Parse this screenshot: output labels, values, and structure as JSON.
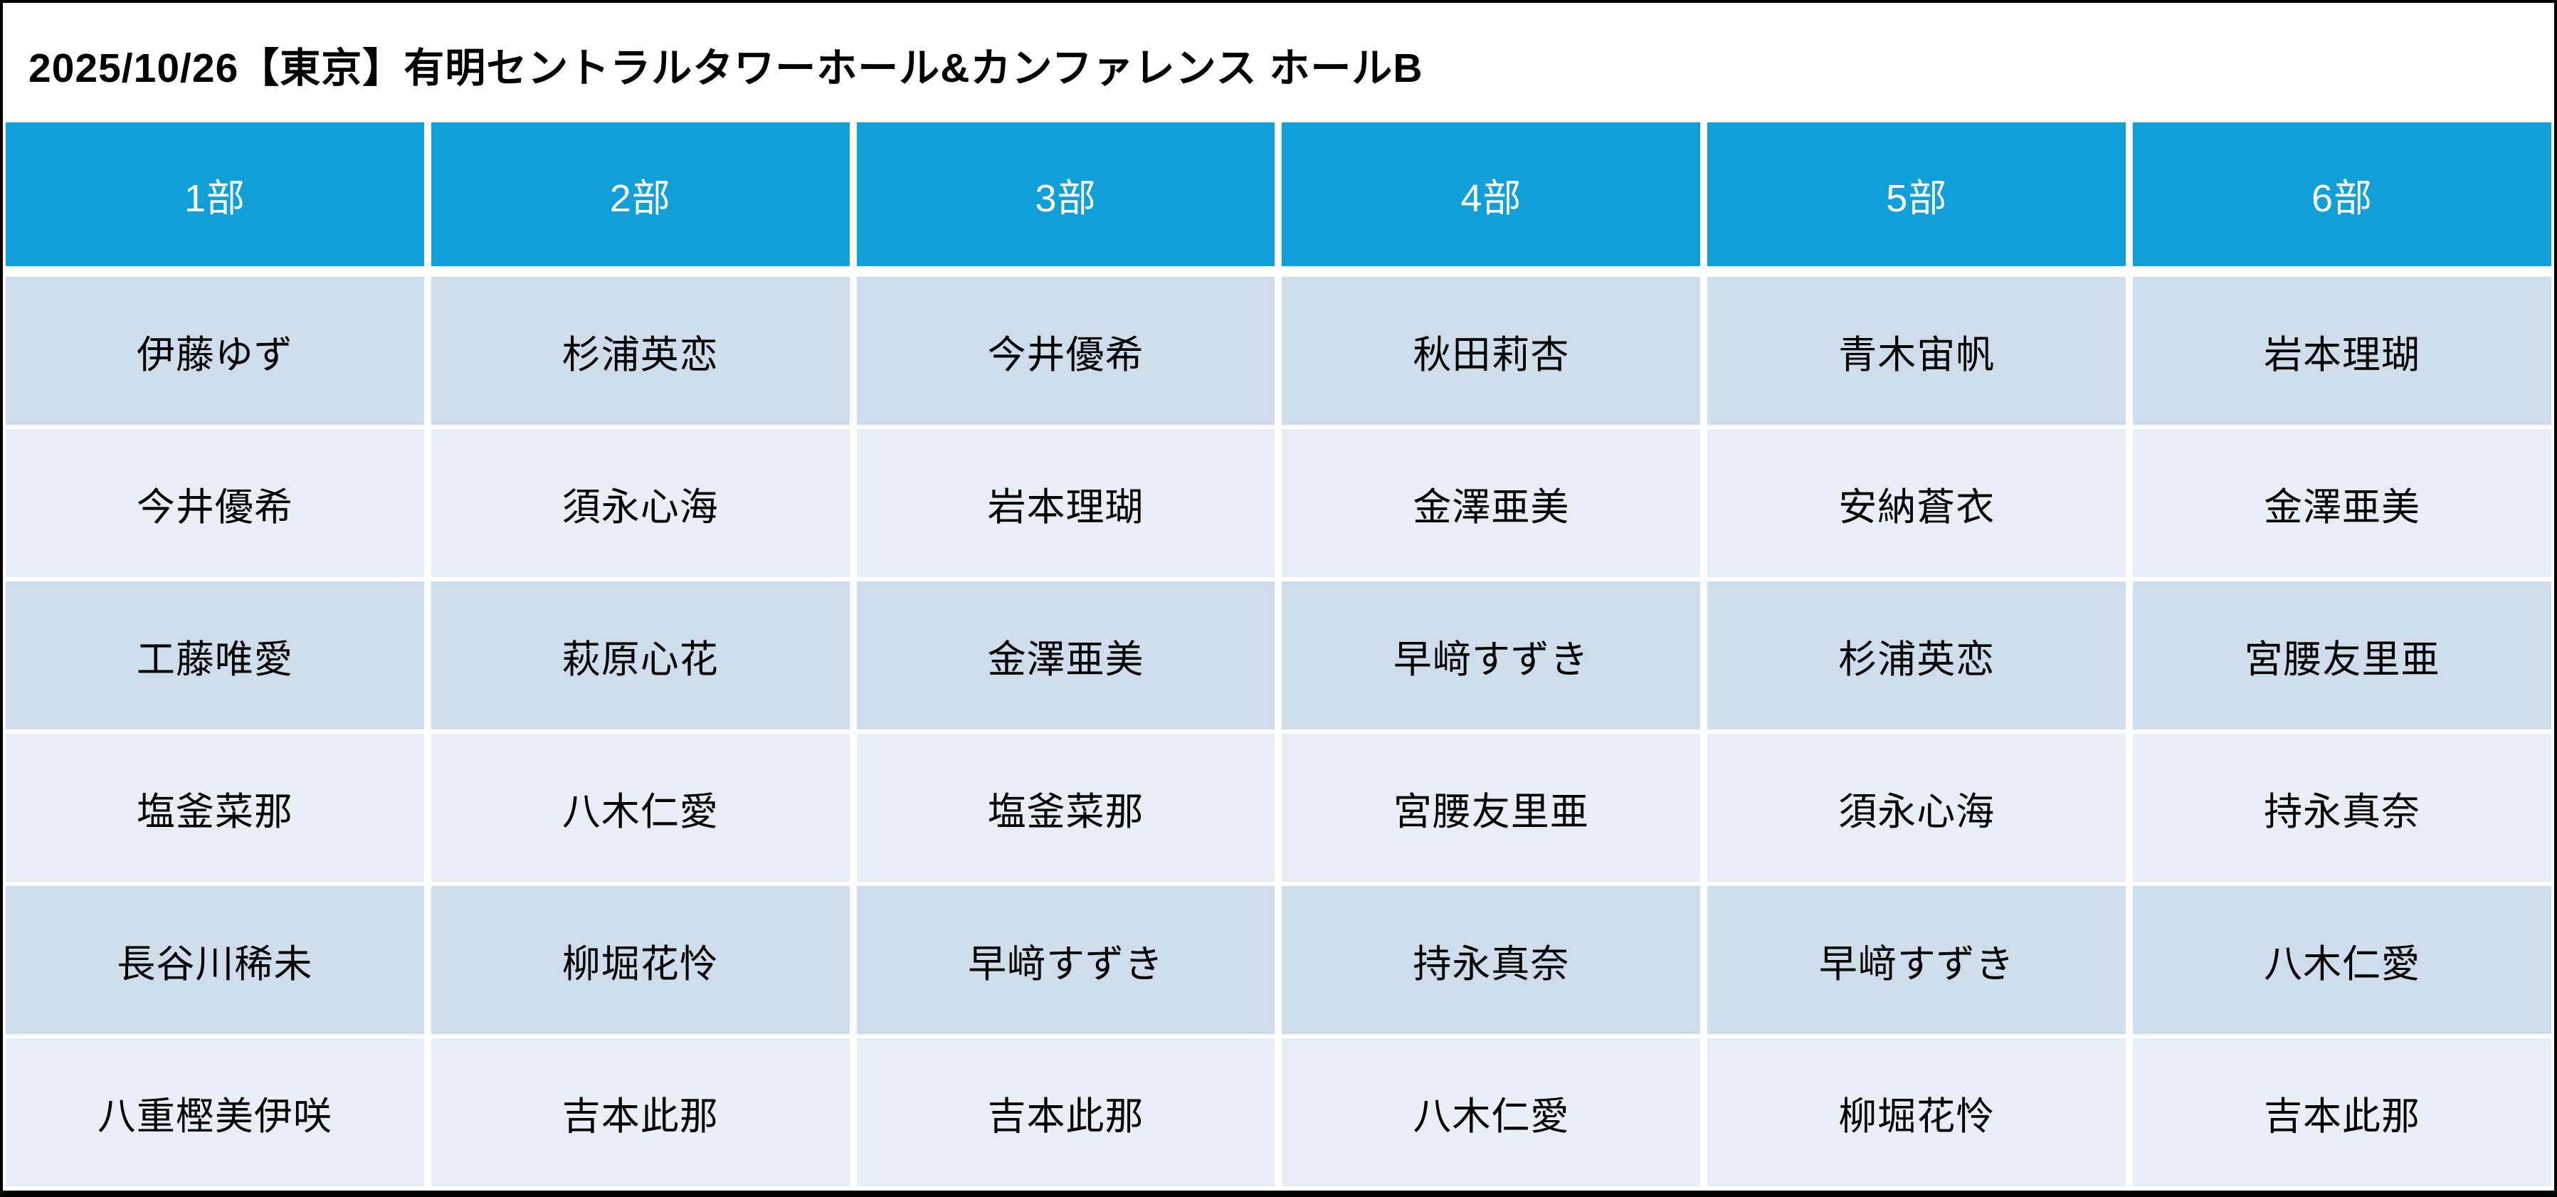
{
  "title": "2025/10/26【東京】有明セントラルタワーホール&カンファレンス ホールB",
  "table": {
    "columns": [
      "1部",
      "2部",
      "3部",
      "4部",
      "5部",
      "6部"
    ],
    "rows": [
      [
        "伊藤ゆず",
        "杉浦英恋",
        "今井優希",
        "秋田莉杏",
        "青木宙帆",
        "岩本理瑚"
      ],
      [
        "今井優希",
        "須永心海",
        "岩本理瑚",
        "金澤亜美",
        "安納蒼衣",
        "金澤亜美"
      ],
      [
        "工藤唯愛",
        "萩原心花",
        "金澤亜美",
        "早﨑すずき",
        "杉浦英恋",
        "宮腰友里亜"
      ],
      [
        "塩釜菜那",
        "八木仁愛",
        "塩釜菜那",
        "宮腰友里亜",
        "須永心海",
        "持永真奈"
      ],
      [
        "長谷川稀未",
        "柳堀花怜",
        "早﨑すずき",
        "持永真奈",
        "早﨑すずき",
        "八木仁愛"
      ],
      [
        "八重樫美伊咲",
        "吉本此那",
        "吉本此那",
        "八木仁愛",
        "柳堀花怜",
        "吉本此那"
      ]
    ]
  },
  "colors": {
    "header_bg": "#119FD8",
    "header_text": "#FFFFFF",
    "row_odd_bg": "#CDDDEB",
    "row_even_bg": "#E8EEF5",
    "body_text": "#000000",
    "border": "#000000"
  }
}
